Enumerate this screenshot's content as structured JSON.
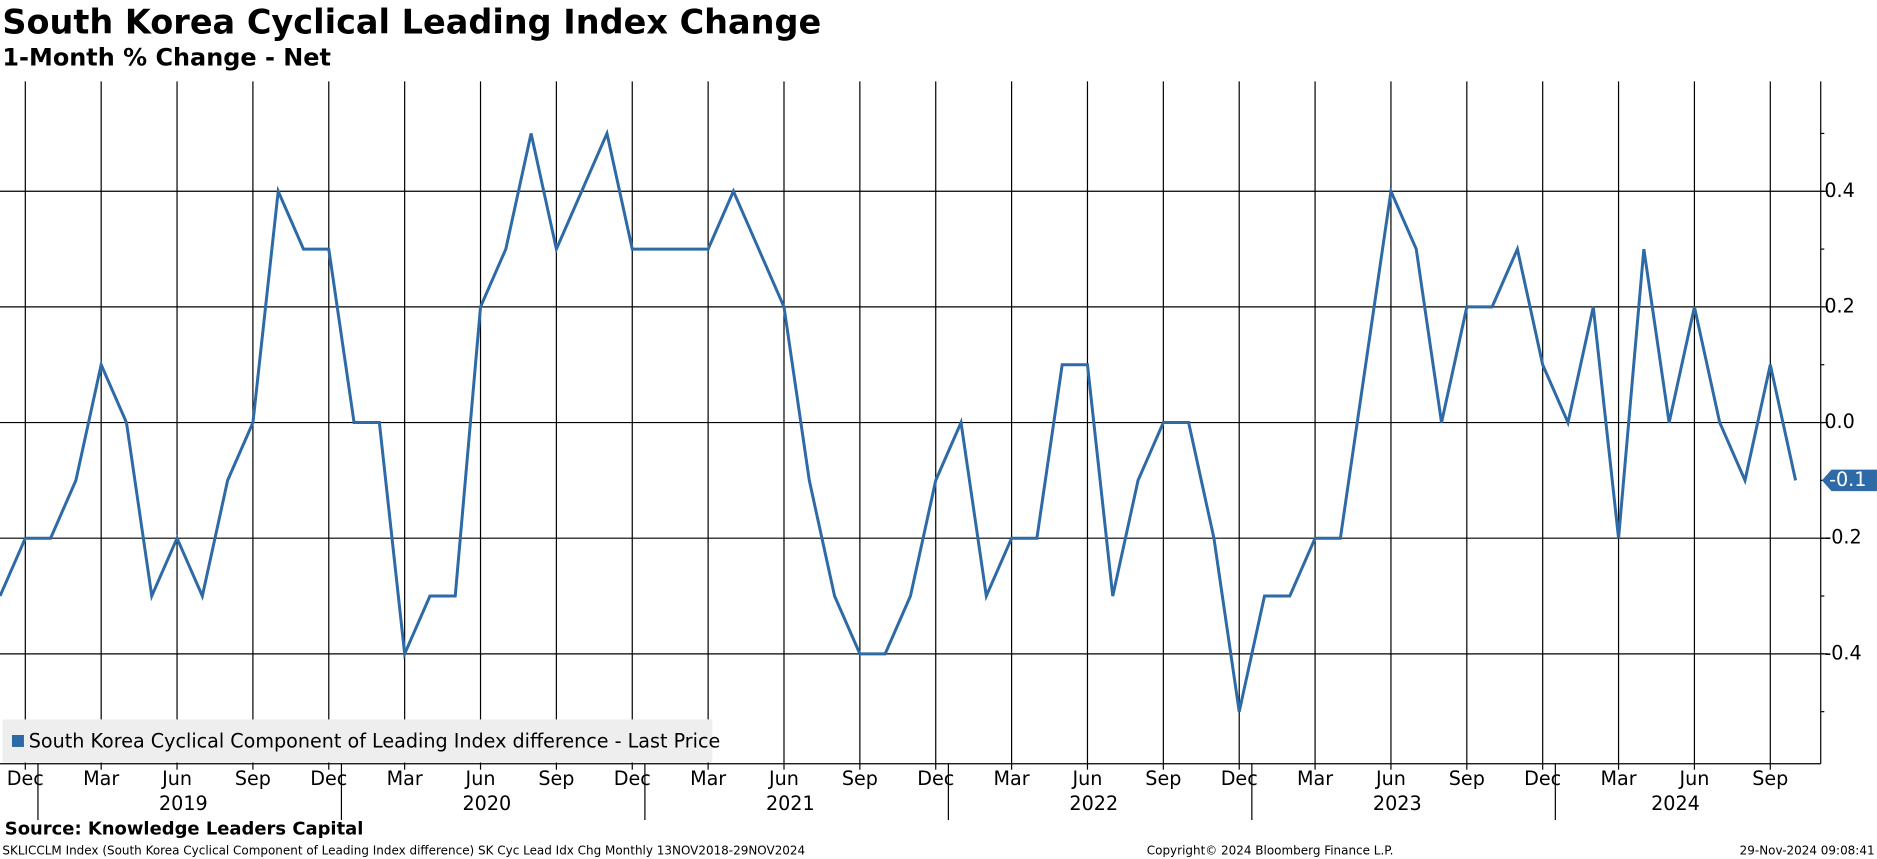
{
  "chart_data": {
    "type": "line",
    "title": "South Korea Cyclical Leading Index Change",
    "subtitle": "1-Month % Change - Net",
    "categories": [
      null,
      "Dec",
      null,
      null,
      "Mar",
      null,
      null,
      "Jun",
      null,
      null,
      "Sep",
      null,
      null,
      "Dec",
      null,
      null,
      "Mar",
      null,
      null,
      "Jun",
      null,
      null,
      "Sep",
      null,
      null,
      "Dec",
      null,
      null,
      "Mar",
      null,
      null,
      "Jun",
      null,
      null,
      "Sep",
      null,
      null,
      "Dec",
      null,
      null,
      "Mar",
      null,
      null,
      "Jun",
      null,
      null,
      "Sep",
      null,
      null,
      "Dec",
      null,
      null,
      "Mar",
      null,
      null,
      "Jun",
      null,
      null,
      "Sep",
      null,
      null,
      "Dec",
      null,
      null,
      "Mar",
      null,
      null,
      "Jun",
      null,
      null,
      "Sep",
      null
    ],
    "years": [
      "2019",
      "2020",
      "2021",
      "2022",
      "2023",
      "2024"
    ],
    "series": [
      {
        "name": "South Korea Cyclical Component of Leading Index difference - Last Price",
        "color": "#2d6aa6",
        "values": [
          -0.3,
          -0.2,
          -0.2,
          -0.1,
          0.1,
          0.0,
          -0.3,
          -0.2,
          -0.3,
          -0.1,
          0.0,
          0.4,
          0.3,
          0.3,
          0.0,
          0.0,
          -0.4,
          -0.3,
          -0.3,
          0.2,
          0.3,
          0.5,
          0.3,
          0.4,
          0.5,
          0.3,
          0.3,
          0.3,
          0.3,
          0.4,
          0.3,
          0.2,
          -0.1,
          -0.3,
          -0.4,
          -0.4,
          -0.3,
          -0.1,
          0.0,
          -0.3,
          -0.2,
          -0.2,
          0.1,
          0.1,
          -0.3,
          -0.1,
          0.0,
          0.0,
          -0.2,
          -0.5,
          -0.3,
          -0.3,
          -0.2,
          -0.2,
          0.1,
          0.4,
          0.3,
          0.0,
          0.2,
          0.2,
          0.3,
          0.1,
          0.0,
          0.2,
          -0.2,
          0.3,
          0.0,
          0.2,
          0.0,
          -0.1,
          0.1,
          -0.1
        ]
      }
    ],
    "ylim": [
      -0.59,
      0.59
    ],
    "yticks": [
      -0.4,
      -0.2,
      {
        "value": 0,
        "label": "0.0"
      },
      0.2,
      0.4
    ],
    "grid": true,
    "legend": "bottom-left",
    "source": "Source: Knowledge Leaders Capital",
    "footer_left": "SKLICCLM Index (South Korea Cyclical Component of Leading Index difference) SK Cyc Lead Idx Chg  Monthly 13NOV2018-29NOV2024",
    "footer_center": "Copyright© 2024 Bloomberg Finance L.P.",
    "footer_right": "29-Nov-2024 09:08:41"
  }
}
